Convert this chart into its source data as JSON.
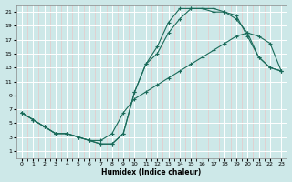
{
  "xlabel": "Humidex (Indice chaleur)",
  "bg_color": "#cde8e8",
  "grid_color": "#ffffff",
  "line_color": "#1a6b5a",
  "xlim": [
    -0.5,
    23.5
  ],
  "ylim": [
    0,
    22
  ],
  "xticks": [
    0,
    1,
    2,
    3,
    4,
    5,
    6,
    7,
    8,
    9,
    10,
    11,
    12,
    13,
    14,
    15,
    16,
    17,
    18,
    19,
    20,
    21,
    22,
    23
  ],
  "yticks": [
    1,
    3,
    5,
    7,
    9,
    11,
    13,
    15,
    17,
    19,
    21
  ],
  "line1_x": [
    0,
    1,
    2,
    3,
    4,
    5,
    6,
    7,
    8,
    9,
    10,
    11,
    12,
    13,
    14,
    15,
    16,
    17,
    18,
    19,
    20,
    21,
    22,
    23
  ],
  "line1_y": [
    6.5,
    5.5,
    4.5,
    3.5,
    3.5,
    3.0,
    2.5,
    2.5,
    3.5,
    6.5,
    8.5,
    9.5,
    10.5,
    11.5,
    12.5,
    13.5,
    14.5,
    15.5,
    16.5,
    17.5,
    18.0,
    17.5,
    16.5,
    12.5
  ],
  "line2_x": [
    0,
    1,
    2,
    3,
    4,
    5,
    6,
    7,
    8,
    9,
    10,
    11,
    12,
    13,
    14,
    15,
    16,
    17,
    18,
    19,
    20,
    21,
    22,
    23
  ],
  "line2_y": [
    6.5,
    5.5,
    4.5,
    3.5,
    3.5,
    3.0,
    2.5,
    2.0,
    2.0,
    3.5,
    9.5,
    13.5,
    16.0,
    19.5,
    21.5,
    21.5,
    21.5,
    21.5,
    21.0,
    20.0,
    18.0,
    14.5,
    13.0,
    12.5
  ],
  "line3_x": [
    0,
    1,
    2,
    3,
    4,
    5,
    6,
    7,
    8,
    9,
    10,
    11,
    12,
    13,
    14,
    15,
    16,
    17,
    18,
    19,
    20,
    21,
    22,
    23
  ],
  "line3_y": [
    6.5,
    5.5,
    4.5,
    3.5,
    3.5,
    3.0,
    2.5,
    2.0,
    2.0,
    3.5,
    9.5,
    13.5,
    15.0,
    18.0,
    20.0,
    21.5,
    21.5,
    21.0,
    21.0,
    20.5,
    17.5,
    14.5,
    13.0,
    12.5
  ]
}
